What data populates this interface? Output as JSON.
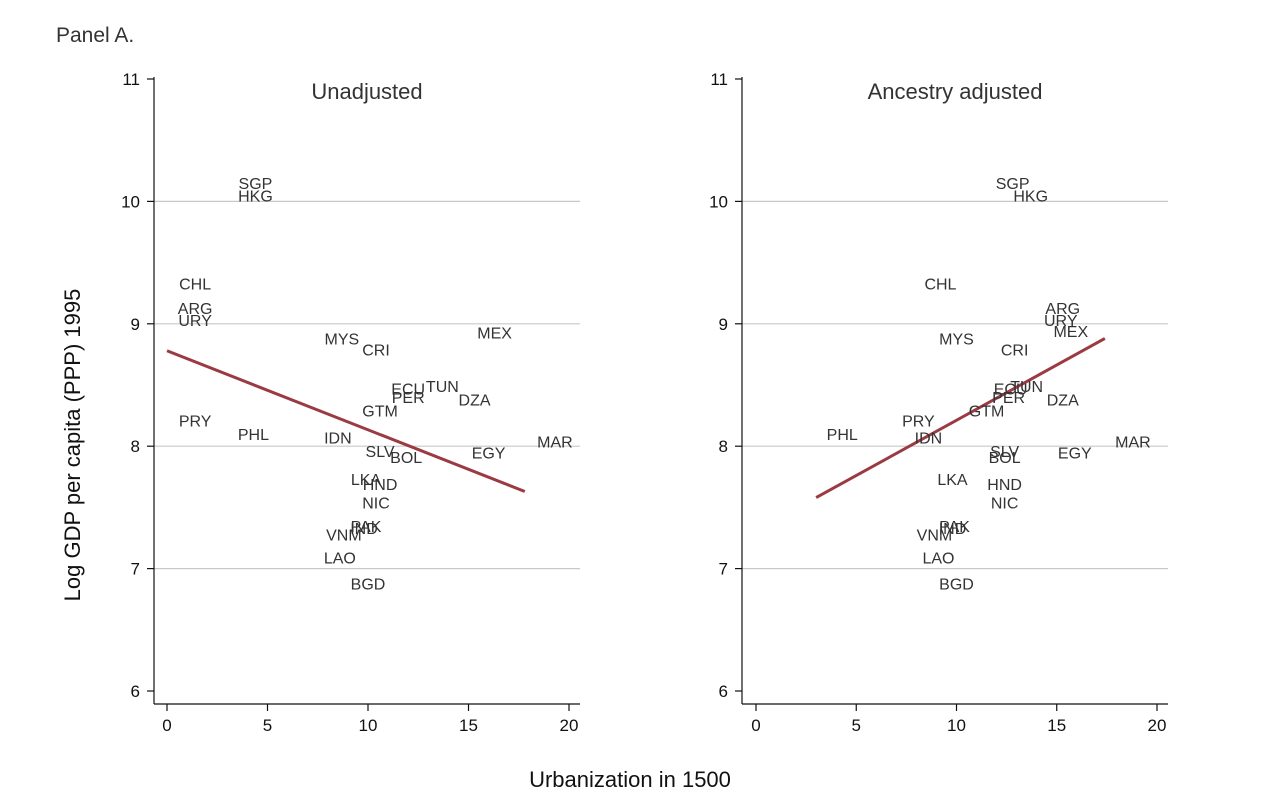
{
  "figure": {
    "panel_label": "Panel A.",
    "ylabel": "Log GDP per capita (PPP) 1995",
    "xlabel": "Urbanization in 1500"
  },
  "colors": {
    "fit_line": "#9b3a42",
    "grid": "#c8c8c8",
    "text": "#333333"
  },
  "chart_data": [
    {
      "type": "scatter",
      "title": "Unadjusted",
      "xlim": [
        0,
        20
      ],
      "ylim": [
        6,
        11
      ],
      "xticks": [
        0,
        5,
        10,
        15,
        20
      ],
      "yticks": [
        6,
        7,
        8,
        9,
        10,
        11
      ],
      "grid": true,
      "fit_line": {
        "x": [
          0,
          17.8
        ],
        "y": [
          8.78,
          7.63
        ]
      },
      "points": [
        {
          "label": "SGP",
          "x": 4.4,
          "y": 10.15
        },
        {
          "label": "HKG",
          "x": 4.4,
          "y": 10.05
        },
        {
          "label": "CHL",
          "x": 1.4,
          "y": 9.33
        },
        {
          "label": "ARG",
          "x": 1.4,
          "y": 9.13
        },
        {
          "label": "URY",
          "x": 1.4,
          "y": 9.03
        },
        {
          "label": "MYS",
          "x": 8.7,
          "y": 8.88
        },
        {
          "label": "CRI",
          "x": 10.4,
          "y": 8.79
        },
        {
          "label": "MEX",
          "x": 16.3,
          "y": 8.93
        },
        {
          "label": "ECU",
          "x": 12.0,
          "y": 8.47
        },
        {
          "label": "TUN",
          "x": 13.7,
          "y": 8.49
        },
        {
          "label": "PER",
          "x": 12.0,
          "y": 8.4
        },
        {
          "label": "DZA",
          "x": 15.3,
          "y": 8.38
        },
        {
          "label": "GTM",
          "x": 10.6,
          "y": 8.29
        },
        {
          "label": "PRY",
          "x": 1.4,
          "y": 8.21
        },
        {
          "label": "PHL",
          "x": 4.3,
          "y": 8.1
        },
        {
          "label": "IDN",
          "x": 8.5,
          "y": 8.07
        },
        {
          "label": "MAR",
          "x": 19.3,
          "y": 8.04
        },
        {
          "label": "SLV",
          "x": 10.6,
          "y": 7.96
        },
        {
          "label": "EGY",
          "x": 16.0,
          "y": 7.95
        },
        {
          "label": "BOL",
          "x": 11.9,
          "y": 7.91
        },
        {
          "label": "LKA",
          "x": 9.9,
          "y": 7.73
        },
        {
          "label": "HND",
          "x": 10.6,
          "y": 7.69
        },
        {
          "label": "NIC",
          "x": 10.4,
          "y": 7.54
        },
        {
          "label": "PAK",
          "x": 9.9,
          "y": 7.35
        },
        {
          "label": "IND",
          "x": 9.8,
          "y": 7.33
        },
        {
          "label": "VNM",
          "x": 8.8,
          "y": 7.28
        },
        {
          "label": "LAO",
          "x": 8.6,
          "y": 7.09
        },
        {
          "label": "BGD",
          "x": 10.0,
          "y": 6.88
        }
      ]
    },
    {
      "type": "scatter",
      "title": "Ancestry adjusted",
      "xlim": [
        0,
        20
      ],
      "ylim": [
        6,
        11
      ],
      "xticks": [
        0,
        5,
        10,
        15,
        20
      ],
      "yticks": [
        6,
        7,
        8,
        9,
        10,
        11
      ],
      "grid": true,
      "fit_line": {
        "x": [
          3.0,
          17.4
        ],
        "y": [
          7.58,
          8.88
        ]
      },
      "points": [
        {
          "label": "SGP",
          "x": 12.8,
          "y": 10.15
        },
        {
          "label": "HKG",
          "x": 13.7,
          "y": 10.05
        },
        {
          "label": "CHL",
          "x": 9.2,
          "y": 9.33
        },
        {
          "label": "ARG",
          "x": 15.3,
          "y": 9.13
        },
        {
          "label": "URY",
          "x": 15.2,
          "y": 9.03
        },
        {
          "label": "MEX",
          "x": 15.7,
          "y": 8.94
        },
        {
          "label": "MYS",
          "x": 10.0,
          "y": 8.88
        },
        {
          "label": "CRI",
          "x": 12.9,
          "y": 8.79
        },
        {
          "label": "ECU",
          "x": 12.7,
          "y": 8.47
        },
        {
          "label": "TUN",
          "x": 13.5,
          "y": 8.49
        },
        {
          "label": "PER",
          "x": 12.6,
          "y": 8.4
        },
        {
          "label": "DZA",
          "x": 15.3,
          "y": 8.38
        },
        {
          "label": "GTM",
          "x": 11.5,
          "y": 8.29
        },
        {
          "label": "PRY",
          "x": 8.1,
          "y": 8.21
        },
        {
          "label": "PHL",
          "x": 4.3,
          "y": 8.1
        },
        {
          "label": "IDN",
          "x": 8.6,
          "y": 8.07
        },
        {
          "label": "MAR",
          "x": 18.8,
          "y": 8.04
        },
        {
          "label": "SLV",
          "x": 12.4,
          "y": 7.96
        },
        {
          "label": "EGY",
          "x": 15.9,
          "y": 7.95
        },
        {
          "label": "BOL",
          "x": 12.4,
          "y": 7.91
        },
        {
          "label": "LKA",
          "x": 9.8,
          "y": 7.73
        },
        {
          "label": "HND",
          "x": 12.4,
          "y": 7.69
        },
        {
          "label": "NIC",
          "x": 12.4,
          "y": 7.54
        },
        {
          "label": "PAK",
          "x": 9.9,
          "y": 7.35
        },
        {
          "label": "IND",
          "x": 9.8,
          "y": 7.33
        },
        {
          "label": "VNM",
          "x": 8.9,
          "y": 7.28
        },
        {
          "label": "LAO",
          "x": 9.1,
          "y": 7.09
        },
        {
          "label": "BGD",
          "x": 10.0,
          "y": 6.88
        }
      ]
    }
  ]
}
